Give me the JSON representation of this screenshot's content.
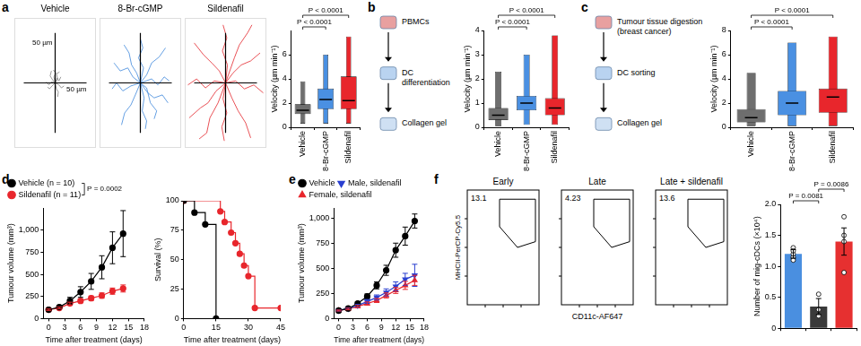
{
  "chart_data": [
    {
      "panel": "a",
      "type": "trajectory",
      "title": "Vehicle",
      "color": "#808080",
      "xlim": [
        -65,
        65
      ],
      "ylim": [
        -65,
        65
      ],
      "tick_labels": false,
      "scale_bar": 50,
      "annotations": [
        "50 µm",
        "50 µm"
      ],
      "tracks": [
        [
          [
            0,
            0
          ],
          [
            3,
            5
          ],
          [
            6,
            2
          ],
          [
            9,
            6
          ]
        ],
        [
          [
            0,
            0
          ],
          [
            -4,
            3
          ],
          [
            -8,
            7
          ],
          [
            -6,
            12
          ]
        ],
        [
          [
            0,
            0
          ],
          [
            -5,
            -3
          ],
          [
            -9,
            -6
          ],
          [
            -12,
            -4
          ]
        ],
        [
          [
            0,
            0
          ],
          [
            2,
            -6
          ],
          [
            5,
            -9
          ],
          [
            4,
            -14
          ]
        ],
        [
          [
            0,
            0
          ],
          [
            6,
            -2
          ],
          [
            10,
            -5
          ],
          [
            14,
            -3
          ]
        ],
        [
          [
            0,
            0
          ],
          [
            -2,
            6
          ],
          [
            1,
            10
          ],
          [
            -3,
            13
          ]
        ],
        [
          [
            0,
            0
          ],
          [
            -6,
            1
          ],
          [
            -10,
            -2
          ],
          [
            -14,
            1
          ]
        ],
        [
          [
            0,
            0
          ],
          [
            4,
            4
          ],
          [
            2,
            9
          ],
          [
            7,
            11
          ]
        ]
      ]
    },
    {
      "type": "trajectory",
      "title": "8-Br-cGMP",
      "color": "#3f88dc",
      "xlim": [
        -65,
        65
      ],
      "ylim": [
        -65,
        65
      ],
      "tick_labels": false,
      "scale_bar": 50,
      "tracks": [
        [
          [
            0,
            0
          ],
          [
            10,
            8
          ],
          [
            18,
            20
          ],
          [
            30,
            26
          ],
          [
            40,
            35
          ]
        ],
        [
          [
            0,
            0
          ],
          [
            -12,
            6
          ],
          [
            -20,
            15
          ],
          [
            -32,
            12
          ],
          [
            -42,
            20
          ]
        ],
        [
          [
            0,
            0
          ],
          [
            -8,
            -12
          ],
          [
            -15,
            -22
          ],
          [
            -25,
            -30
          ],
          [
            -30,
            -42
          ]
        ],
        [
          [
            0,
            0
          ],
          [
            12,
            -10
          ],
          [
            22,
            -15
          ],
          [
            35,
            -12
          ],
          [
            44,
            -20
          ]
        ],
        [
          [
            0,
            0
          ],
          [
            5,
            15
          ],
          [
            -3,
            25
          ],
          [
            4,
            35
          ],
          [
            0,
            44
          ]
        ],
        [
          [
            0,
            0
          ],
          [
            -15,
            -3
          ],
          [
            -28,
            -8
          ],
          [
            -38,
            0
          ],
          [
            -45,
            -6
          ]
        ],
        [
          [
            0,
            0
          ],
          [
            6,
            -15
          ],
          [
            3,
            -28
          ],
          [
            10,
            -38
          ],
          [
            8,
            -46
          ]
        ],
        [
          [
            0,
            0
          ],
          [
            18,
            4
          ],
          [
            28,
            -2
          ],
          [
            38,
            6
          ],
          [
            46,
            2
          ]
        ],
        [
          [
            0,
            0
          ],
          [
            -6,
            10
          ],
          [
            -14,
            18
          ],
          [
            -18,
            30
          ],
          [
            -26,
            38
          ]
        ],
        [
          [
            0,
            0
          ],
          [
            10,
            -5
          ],
          [
            16,
            -20
          ],
          [
            26,
            -28
          ],
          [
            22,
            -36
          ]
        ]
      ]
    },
    {
      "type": "trajectory",
      "title": "Sildenafil",
      "color": "#e3262c",
      "xlim": [
        -65,
        65
      ],
      "ylim": [
        -65,
        65
      ],
      "tick_labels": false,
      "scale_bar": 50,
      "tracks": [
        [
          [
            0,
            0
          ],
          [
            12,
            10
          ],
          [
            25,
            18
          ],
          [
            40,
            22
          ],
          [
            55,
            30
          ]
        ],
        [
          [
            0,
            0
          ],
          [
            -10,
            12
          ],
          [
            -22,
            20
          ],
          [
            -35,
            28
          ],
          [
            -50,
            40
          ]
        ],
        [
          [
            0,
            0
          ],
          [
            -15,
            -8
          ],
          [
            -28,
            -20
          ],
          [
            -40,
            -25
          ],
          [
            -58,
            -35
          ]
        ],
        [
          [
            0,
            0
          ],
          [
            10,
            -15
          ],
          [
            20,
            -28
          ],
          [
            32,
            -40
          ],
          [
            40,
            -55
          ]
        ],
        [
          [
            0,
            0
          ],
          [
            3,
            18
          ],
          [
            -5,
            32
          ],
          [
            2,
            45
          ],
          [
            -4,
            58
          ]
        ],
        [
          [
            0,
            0
          ],
          [
            -18,
            2
          ],
          [
            -32,
            -5
          ],
          [
            -46,
            4
          ],
          [
            -60,
            -2
          ]
        ],
        [
          [
            0,
            0
          ],
          [
            -4,
            -16
          ],
          [
            2,
            -30
          ],
          [
            -6,
            -44
          ],
          [
            -2,
            -58
          ]
        ],
        [
          [
            0,
            0
          ],
          [
            16,
            2
          ],
          [
            30,
            -6
          ],
          [
            45,
            -2
          ],
          [
            60,
            -10
          ]
        ],
        [
          [
            0,
            0
          ],
          [
            14,
            25
          ],
          [
            22,
            38
          ],
          [
            35,
            50
          ],
          [
            42,
            58
          ]
        ],
        [
          [
            0,
            0
          ],
          [
            -12,
            -20
          ],
          [
            -25,
            -35
          ],
          [
            -30,
            -50
          ],
          [
            -42,
            -56
          ]
        ]
      ]
    },
    {
      "type": "violin",
      "ylabel": "Velocity (µm min⁻¹)",
      "categories": [
        "Vehicle",
        "8-Br-cGMP",
        "Sildenafil"
      ],
      "colors": [
        "#6e6e6e",
        "#4a90e2",
        "#e8262c"
      ],
      "min": [
        0.3,
        0.3,
        0.3
      ],
      "q1": [
        1.1,
        1.5,
        1.5
      ],
      "median": [
        1.4,
        2.3,
        2.2
      ],
      "q3": [
        1.9,
        3.2,
        4.2
      ],
      "max": [
        3.8,
        6.0,
        7.5
      ],
      "ylim": [
        0,
        8
      ],
      "yticks": [
        0,
        2,
        4,
        6
      ],
      "annotations": [
        {
          "text": "P < 0.0001",
          "between": [
            0,
            1
          ]
        },
        {
          "text": "P < 0.0001",
          "between": [
            0,
            2
          ]
        }
      ]
    },
    {
      "panel": "b",
      "type": "violin",
      "schematic": [
        "PBMCs",
        "DC differentiation",
        "Collagen gel"
      ],
      "ylabel": "Velocity (µm min⁻¹)",
      "categories": [
        "Vehicle",
        "8-Br-cGMP",
        "Sildenafil"
      ],
      "colors": [
        "#6e6e6e",
        "#4a90e2",
        "#e8262c"
      ],
      "min": [
        0.05,
        0.1,
        0.1
      ],
      "q1": [
        0.3,
        0.7,
        0.5
      ],
      "median": [
        0.5,
        1.0,
        0.8
      ],
      "q3": [
        0.8,
        1.3,
        1.2
      ],
      "max": [
        2.3,
        3.0,
        3.8
      ],
      "ylim": [
        0,
        4
      ],
      "yticks": [
        0,
        1,
        2,
        3,
        4
      ],
      "annotations": [
        {
          "text": "P < 0.0001",
          "between": [
            0,
            1
          ]
        },
        {
          "text": "P < 0.0001",
          "between": [
            0,
            2
          ]
        }
      ]
    },
    {
      "panel": "c",
      "type": "violin",
      "schematic": [
        "Tumour tissue digestion\n(breast cancer)",
        "DC sorting",
        "Collagen gel"
      ],
      "ylabel": "Velocity (µm min⁻¹)",
      "categories": [
        "Vehicle",
        "8-Br-cGMP",
        "Sildenafil"
      ],
      "colors": [
        "#6e6e6e",
        "#4a90e2",
        "#e8262c"
      ],
      "min": [
        0.1,
        0.1,
        0.1
      ],
      "q1": [
        0.4,
        1.0,
        1.2
      ],
      "median": [
        0.8,
        2.0,
        2.5
      ],
      "q3": [
        1.5,
        3.0,
        3.2
      ],
      "max": [
        4.5,
        7.0,
        7.5
      ],
      "ylim": [
        0,
        8
      ],
      "yticks": [
        0,
        2,
        4,
        6,
        8
      ],
      "annotations": [
        {
          "text": "P < 0.0001",
          "between": [
            0,
            1
          ]
        },
        {
          "text": "P < 0.0001",
          "between": [
            0,
            2
          ]
        }
      ]
    },
    {
      "panel": "d",
      "type": "line",
      "xlabel": "Time after treatment (days)",
      "ylabel": "Tumour volume (mm³)",
      "x": [
        0,
        2,
        4,
        6,
        8,
        10,
        12,
        14
      ],
      "xlim": [
        -1,
        18
      ],
      "xticks": [
        0,
        3,
        6,
        9,
        12,
        15,
        18
      ],
      "ylim": [
        0,
        1250
      ],
      "yticks": [
        0,
        250,
        500,
        750,
        {
          "value": 1000,
          "label": "1,000"
        }
      ],
      "legend": "top-left",
      "series": [
        {
          "name": "Vehicle (n = 10)",
          "color": "#000000",
          "marker": "circle",
          "values": [
            100,
            130,
            200,
            300,
            420,
            580,
            800,
            960
          ],
          "errors": [
            10,
            20,
            40,
            60,
            90,
            130,
            180,
            260
          ]
        },
        {
          "name": "Sildenafil (n = 11)",
          "color": "#e8262c",
          "marker": "circle",
          "values": [
            100,
            120,
            170,
            200,
            230,
            260,
            310,
            340
          ],
          "errors": [
            8,
            10,
            15,
            20,
            25,
            30,
            35,
            40
          ]
        }
      ],
      "annotations": [
        {
          "text": "P = 0.0002",
          "between": [
            0,
            1
          ]
        }
      ]
    },
    {
      "type": "step",
      "xlabel": "Time after treatment (days)",
      "ylabel": "Survival (%)",
      "xlim": [
        0,
        45
      ],
      "xticks": [
        0,
        15,
        30,
        45
      ],
      "ylim": [
        0,
        100
      ],
      "yticks": [
        0,
        25,
        50,
        75,
        100
      ],
      "series": [
        {
          "color": "#000000",
          "marker": "circle",
          "x": [
            0,
            5,
            10,
            15
          ],
          "values": [
            100,
            90,
            80,
            0
          ]
        },
        {
          "color": "#e8262c",
          "marker": "circle",
          "x": [
            0,
            17,
            19,
            22,
            24,
            26,
            28,
            30,
            33,
            45
          ],
          "values": [
            100,
            91,
            82,
            73,
            64,
            55,
            45,
            36,
            9,
            9
          ]
        }
      ]
    },
    {
      "panel": "e",
      "type": "line",
      "xlabel": "Time after treatment (days)",
      "ylabel": "Tumour volume (mm³)",
      "x": [
        0,
        2,
        4,
        6,
        8,
        10,
        12,
        14,
        16
      ],
      "xlim": [
        -1,
        18
      ],
      "xticks": [
        0,
        3,
        6,
        9,
        12,
        15,
        18
      ],
      "ylim": [
        0,
        1100
      ],
      "yticks": [
        0,
        250,
        500,
        750,
        {
          "value": 1000,
          "label": "1,000"
        }
      ],
      "legend": "top-left",
      "series": [
        {
          "name": "Vehicle",
          "color": "#000000",
          "marker": "circle",
          "values": [
            80,
            100,
            150,
            220,
            330,
            480,
            680,
            820,
            970
          ],
          "errors": [
            5,
            10,
            15,
            25,
            35,
            50,
            70,
            90,
            70
          ]
        },
        {
          "name": "Male, sildenafil",
          "color": "#2a3fd0",
          "marker": "triangle-down",
          "values": [
            80,
            100,
            130,
            170,
            210,
            260,
            320,
            390,
            430
          ],
          "errors": [
            5,
            8,
            12,
            20,
            25,
            35,
            45,
            60,
            110
          ]
        },
        {
          "name": "Female, sildenafil",
          "color": "#e8262c",
          "marker": "triangle",
          "values": [
            80,
            95,
            120,
            150,
            180,
            230,
            280,
            330,
            380
          ],
          "errors": [
            5,
            8,
            10,
            15,
            20,
            25,
            30,
            40,
            50
          ]
        }
      ]
    },
    {
      "panel": "f",
      "type": "contour",
      "title": "Early",
      "gate_percent": 13.1,
      "ylabel": "MHCII-PerCP-Cy5.5"
    },
    {
      "type": "contour",
      "title": "Late",
      "gate_percent": 4.23,
      "xlabel": "CD11c-AF647"
    },
    {
      "type": "contour",
      "title": "Late + sildenafil",
      "gate_percent": 13.6
    },
    {
      "type": "bar",
      "ylabel": "Number of mig-cDCs (×10⁴)",
      "categories": [
        null,
        null,
        null
      ],
      "colors": [
        "#4a8fe0",
        "#3a3a3a",
        "#e63030"
      ],
      "values": [
        1.2,
        0.35,
        1.4
      ],
      "errors": [
        0.07,
        0.13,
        0.22
      ],
      "points": [
        [
          1.25,
          1.1,
          1.2,
          1.3,
          1.15
        ],
        [
          0.55,
          0.3,
          0.2
        ],
        [
          1.8,
          1.5,
          1.4,
          0.9
        ]
      ],
      "ylim": [
        0,
        2
      ],
      "yticks": [
        0,
        0.5,
        {
          "value": 1,
          "label": "1.0"
        },
        1.5,
        {
          "value": 2,
          "label": "2.0"
        }
      ],
      "annotations": [
        {
          "text": "P = 0.0081",
          "between": [
            0,
            1
          ]
        },
        {
          "text": "P = 0.0086",
          "between": [
            1,
            2
          ]
        }
      ]
    }
  ]
}
